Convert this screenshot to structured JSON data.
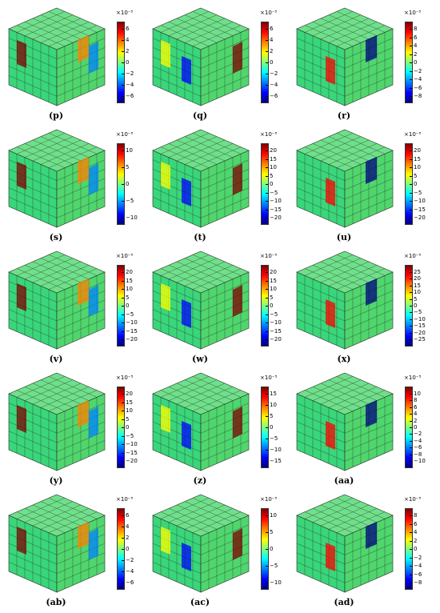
{
  "panels": [
    {
      "label": "(p)",
      "exponent": "×10⁻⁵",
      "ticks": [
        "6",
        "4",
        "2",
        "0",
        "−2",
        "−4",
        "−6"
      ]
    },
    {
      "label": "(q)",
      "exponent": "×10⁻⁵",
      "ticks": [
        "6",
        "4",
        "2",
        "0",
        "−2",
        "−4",
        "−6"
      ]
    },
    {
      "label": "(r)",
      "exponent": "×10⁻⁵",
      "ticks": [
        "8",
        "6",
        "4",
        "2",
        "0",
        "−2",
        "−4",
        "−6",
        "−8"
      ]
    },
    {
      "label": "(s)",
      "exponent": "×10⁻⁵",
      "ticks": [
        "10",
        "5",
        "0",
        "−5",
        "−10"
      ]
    },
    {
      "label": "(t)",
      "exponent": "×10⁻⁵",
      "ticks": [
        "20",
        "15",
        "10",
        "5",
        "0",
        "−5",
        "−10",
        "−15",
        "−20"
      ]
    },
    {
      "label": "(u)",
      "exponent": "×10⁻⁵",
      "ticks": [
        "20",
        "15",
        "10",
        "5",
        "0",
        "−5",
        "−10",
        "−15",
        "−20"
      ]
    },
    {
      "label": "(v)",
      "exponent": "×10⁻⁵",
      "ticks": [
        "20",
        "15",
        "10",
        "5",
        "0",
        "−5",
        "−10",
        "−15",
        "−20"
      ]
    },
    {
      "label": "(w)",
      "exponent": "×10⁻⁵",
      "ticks": [
        "20",
        "15",
        "10",
        "5",
        "0",
        "−5",
        "−10",
        "−15",
        "−20"
      ]
    },
    {
      "label": "(x)",
      "exponent": "×10⁻⁵",
      "ticks": [
        "25",
        "20",
        "15",
        "10",
        "5",
        "0",
        "−5",
        "−10",
        "−15",
        "−20",
        "−25"
      ]
    },
    {
      "label": "(y)",
      "exponent": "×10⁻⁵",
      "ticks": [
        "20",
        "15",
        "10",
        "5",
        "0",
        "−5",
        "−10",
        "−15",
        "−20"
      ]
    },
    {
      "label": "(z)",
      "exponent": "×10⁻⁵",
      "ticks": [
        "15",
        "10",
        "5",
        "0",
        "−5",
        "−10",
        "−15"
      ]
    },
    {
      "label": "(aa)",
      "exponent": "×10⁻⁵",
      "ticks": [
        "10",
        "8",
        "6",
        "4",
        "2",
        "0",
        "−2",
        "−4",
        "−6",
        "−8",
        "−10"
      ]
    },
    {
      "label": "(ab)",
      "exponent": "×10⁻⁵",
      "ticks": [
        "6",
        "4",
        "2",
        "0",
        "−2",
        "−4",
        "−6"
      ]
    },
    {
      "label": "(ac)",
      "exponent": "×10⁻⁵",
      "ticks": [
        "10",
        "5",
        "0",
        "−5",
        "−10"
      ]
    },
    {
      "label": "(ad)",
      "exponent": "×10⁻⁵",
      "ticks": [
        "8",
        "6",
        "4",
        "2",
        "0",
        "−2",
        "−4",
        "−6",
        "−8"
      ]
    }
  ],
  "colors": {
    "colormap": [
      "#7f0000",
      "#ff0000",
      "#ff8000",
      "#ffff00",
      "#80ff80",
      "#00ffff",
      "#0080ff",
      "#0000ff",
      "#00007f"
    ],
    "cube_base": "#39d67a",
    "cube_grid": "#2a2a2a"
  }
}
